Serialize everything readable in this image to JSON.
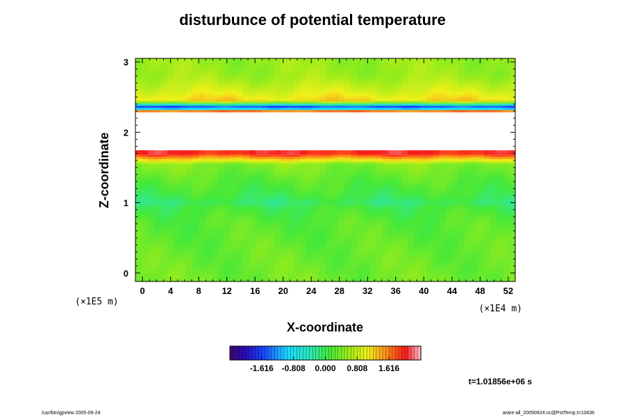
{
  "chart_data": {
    "type": "heatmap",
    "title": "disturbunce of potential temperature",
    "xlabel": "X-coordinate",
    "ylabel": "Z-coordinate",
    "x_unit": "(×1E4 m)",
    "y_unit": "(×1E5 m)",
    "xlim": [
      -1.0,
      53.0
    ],
    "ylim": [
      -0.12,
      3.05
    ],
    "x_ticks": [
      "0",
      "4",
      "8",
      "12",
      "16",
      "20",
      "24",
      "28",
      "32",
      "36",
      "40",
      "44",
      "48",
      "52"
    ],
    "x_tick_values": [
      0,
      4,
      8,
      12,
      16,
      20,
      24,
      28,
      32,
      36,
      40,
      44,
      48,
      52
    ],
    "y_ticks": [
      "0",
      "1",
      "2",
      "3"
    ],
    "y_tick_values": [
      0,
      1,
      2,
      3
    ],
    "colorbar": {
      "range": [
        -2.424,
        2.424
      ],
      "tick_labels": [
        "-1.616",
        "-0.808",
        "0.000",
        "0.808",
        "1.616"
      ],
      "tick_values": [
        -1.616,
        -0.808,
        0.0,
        0.808,
        1.616
      ],
      "levels": 60
    },
    "field_profile": {
      "z": [
        -0.12,
        0.3,
        0.75,
        0.95,
        1.0,
        1.1,
        1.35,
        1.55,
        1.62,
        1.7,
        1.8,
        1.95,
        2.1,
        2.25,
        2.3,
        2.35,
        2.45,
        2.6,
        2.8,
        3.05
      ],
      "value": [
        0.35,
        0.3,
        0.2,
        0.05,
        -0.1,
        0.05,
        0.25,
        0.45,
        1.2,
        2.0,
        9,
        9,
        9,
        9,
        2.0,
        -2.0,
        1.2,
        0.9,
        0.6,
        0.55
      ]
    },
    "out_of_range_color": "#ffffff",
    "time_label": "t=1.01856e+06 s"
  },
  "footer": {
    "left": "/usr/bin/gpview 2005-09-24",
    "right": "arare-all_20050924.nc@PotTemp,t=10836"
  }
}
